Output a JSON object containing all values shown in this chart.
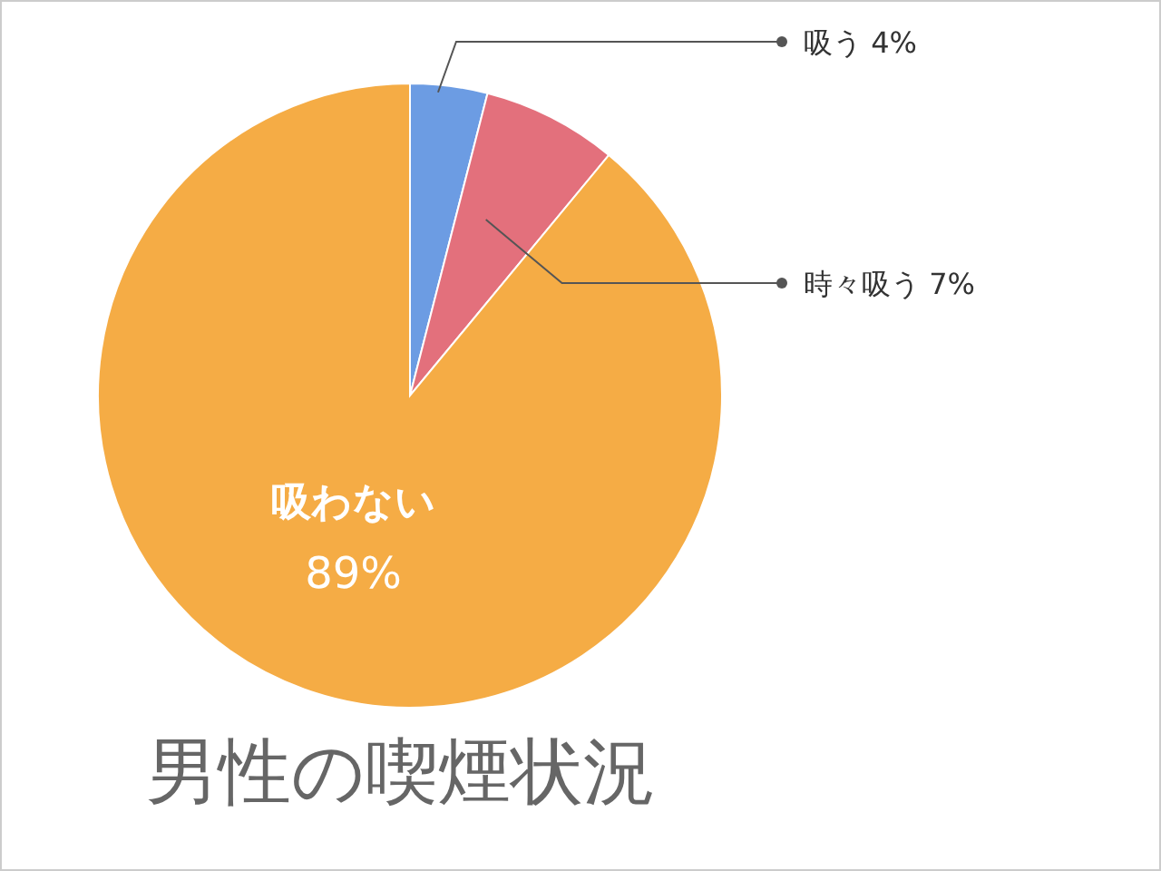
{
  "chart_data": {
    "type": "pie",
    "title": "男性の喫煙状況",
    "categories": [
      "吸う",
      "時々吸う",
      "吸わない"
    ],
    "values": [
      4,
      7,
      89
    ],
    "colors": [
      "#6c9ce3",
      "#e3707c",
      "#f5ac45"
    ],
    "value_labels": [
      "4%",
      "7%",
      "89%"
    ]
  }
}
